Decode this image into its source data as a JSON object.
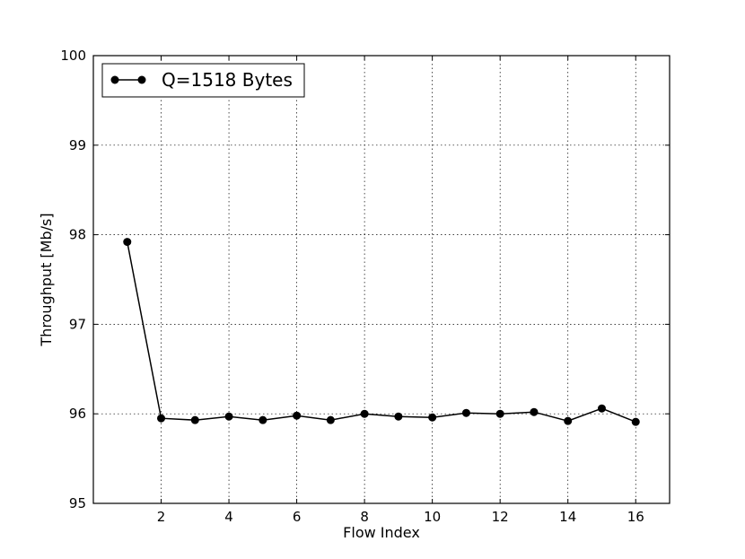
{
  "chart_data": {
    "type": "line",
    "title": "",
    "xlabel": "Flow Index",
    "ylabel": "Throughput [Mb/s]",
    "xlim": [
      0,
      17
    ],
    "ylim": [
      95,
      100
    ],
    "xticks": [
      2,
      4,
      6,
      8,
      10,
      12,
      14,
      16
    ],
    "yticks": [
      95,
      96,
      97,
      98,
      99,
      100
    ],
    "grid": true,
    "legend_position": "top-left",
    "series": [
      {
        "name": "Q=1518 Bytes",
        "color": "#000000",
        "marker": "circle",
        "x": [
          1,
          2,
          3,
          4,
          5,
          6,
          7,
          8,
          9,
          10,
          11,
          12,
          13,
          14,
          15,
          16
        ],
        "y": [
          97.92,
          95.95,
          95.93,
          95.97,
          95.93,
          95.98,
          95.93,
          96.0,
          95.97,
          95.96,
          96.01,
          96.0,
          96.02,
          95.92,
          96.06,
          95.91
        ]
      }
    ]
  }
}
